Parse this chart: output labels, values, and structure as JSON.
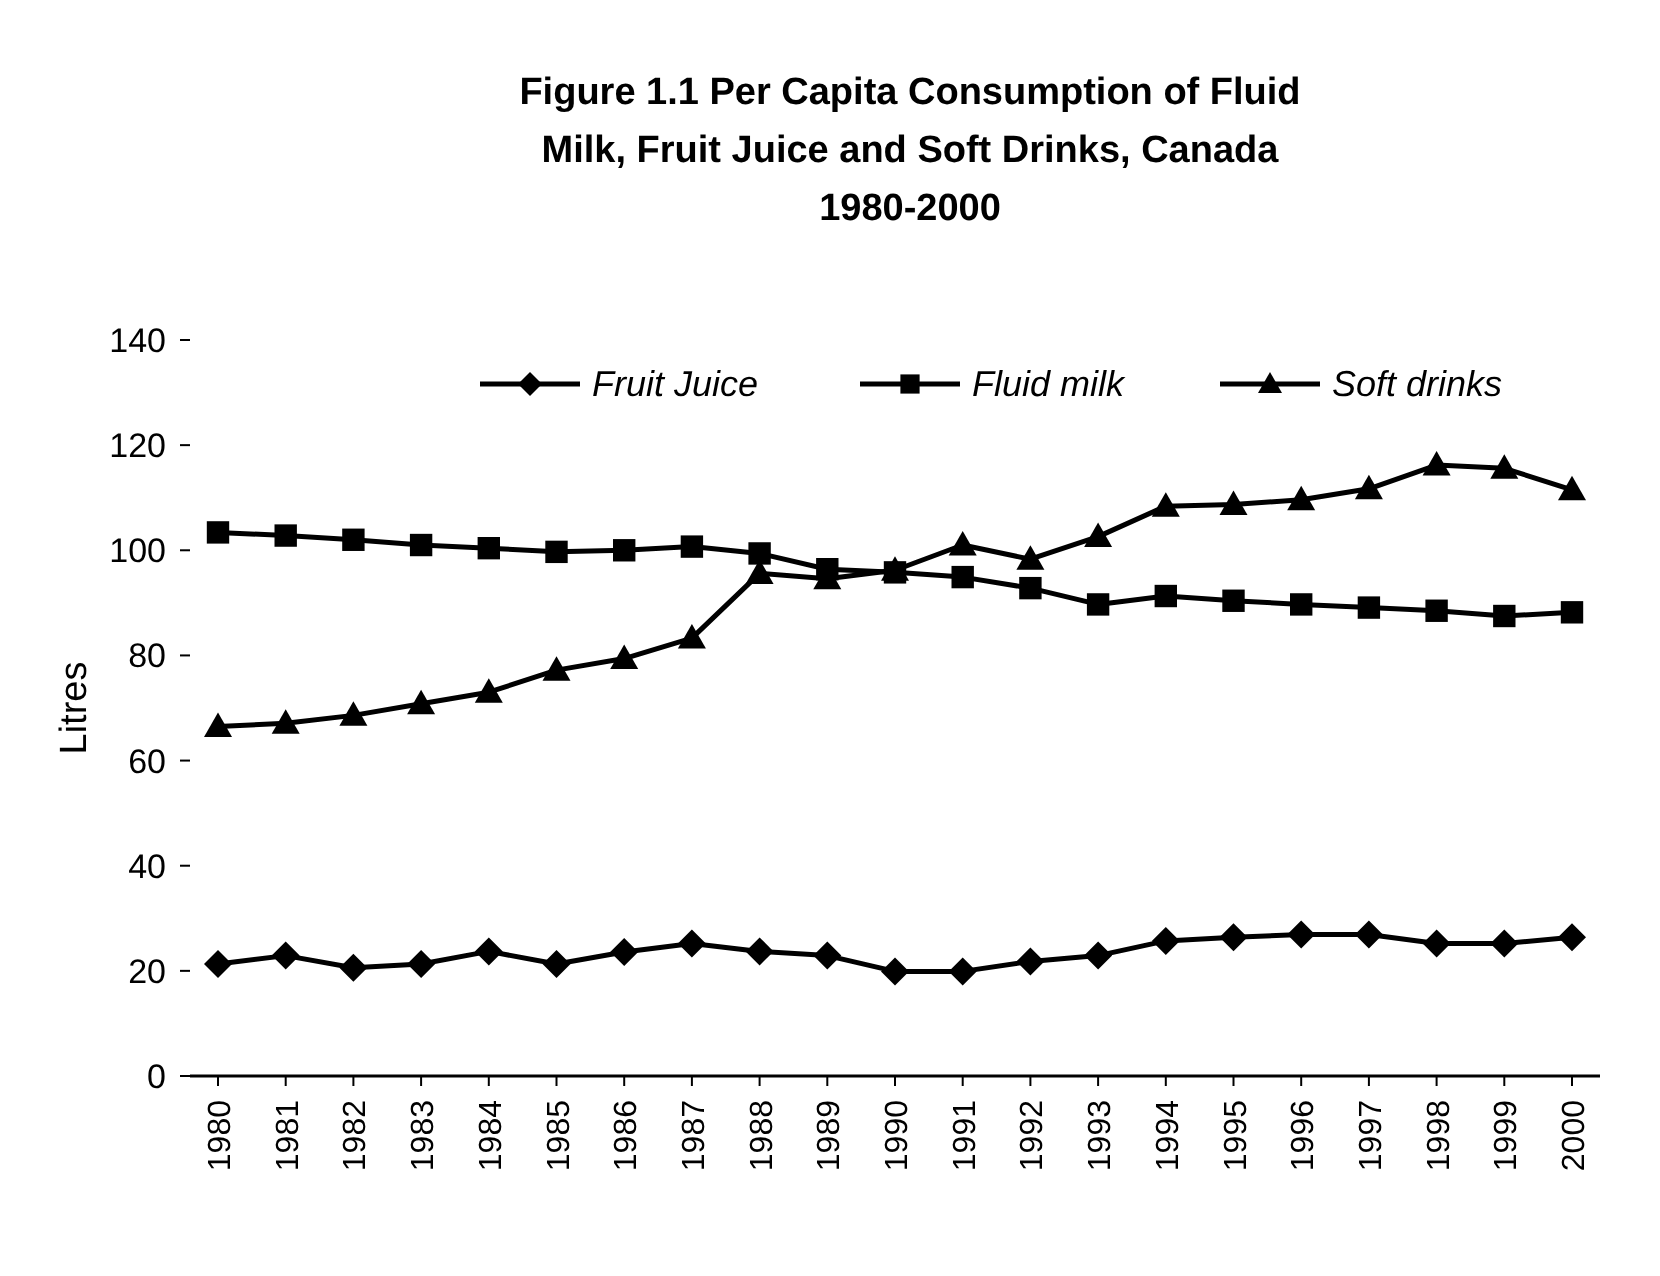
{
  "chart_data": {
    "type": "line",
    "title": "Figure 1.1 Per Capita Consumption of Fluid Milk, Fruit Juice and Soft Drinks, Canada 1980-2000",
    "ylabel": "Litres",
    "categories": [
      "1980",
      "1981",
      "1982",
      "1983",
      "1984",
      "1985",
      "1986",
      "1987",
      "1988",
      "1989",
      "1990",
      "1991",
      "1992",
      "1993",
      "1994",
      "1995",
      "1996",
      "1997",
      "1998",
      "1999",
      "2000"
    ],
    "series": [
      {
        "name": "Fruit Juice",
        "color": "#000000",
        "marker": "diamond",
        "values": [
          21.3,
          22.9,
          20.6,
          21.3,
          23.7,
          21.3,
          23.6,
          25.2,
          23.7,
          22.9,
          19.9,
          19.9,
          21.8,
          22.9,
          25.7,
          26.4,
          26.9,
          26.9,
          25.2,
          25.2,
          26.4
        ]
      },
      {
        "name": "Fluid milk",
        "color": "#000000",
        "marker": "square",
        "values": [
          103.4,
          102.8,
          102,
          101,
          100.4,
          99.7,
          100,
          100.7,
          99.4,
          96.4,
          95.8,
          94.9,
          92.8,
          89.7,
          91.3,
          90.4,
          89.7,
          89.1,
          88.5,
          87.5,
          88.2
        ]
      },
      {
        "name": "Soft drinks",
        "color": "#000000",
        "marker": "triangle",
        "values": [
          66.5,
          67.1,
          68.6,
          70.8,
          73,
          77.2,
          79.4,
          83.3,
          95.6,
          94.6,
          96.2,
          101,
          98.3,
          102.6,
          108.4,
          108.7,
          109.6,
          111.7,
          116.2,
          115.6,
          111.5
        ]
      }
    ],
    "ylim": [
      0,
      140
    ],
    "yticks": [
      0,
      20,
      40,
      60,
      80,
      100,
      120,
      140
    ],
    "legend": "top right",
    "grid": false
  }
}
